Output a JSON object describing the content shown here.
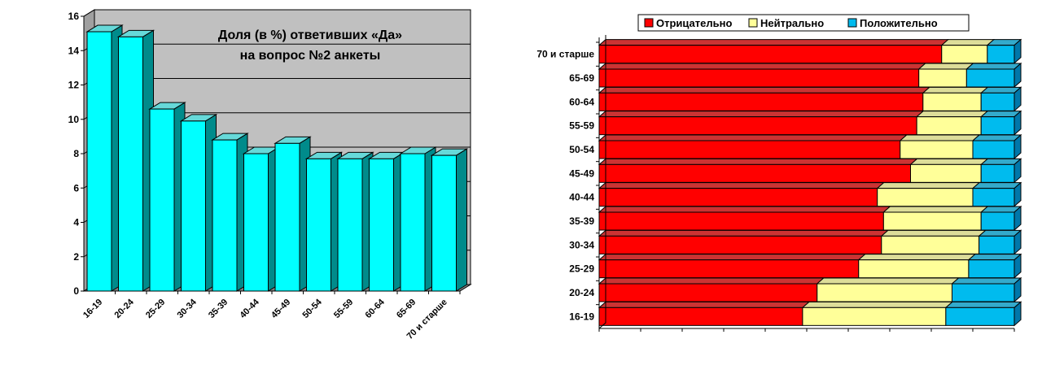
{
  "chart_data": [
    {
      "type": "bar",
      "title_lines": [
        "Доля (в %) ответивших «Да»",
        "на вопрос №2 анкеты"
      ],
      "categories": [
        "16-19",
        "20-24",
        "25-29",
        "30-34",
        "35-39",
        "40-44",
        "45-49",
        "50-54",
        "55-59",
        "60-64",
        "65-69",
        "70 и старше"
      ],
      "values": [
        15.1,
        14.8,
        10.6,
        9.9,
        8.8,
        8.0,
        8.6,
        7.7,
        7.7,
        7.7,
        8.0,
        7.9
      ],
      "ylim": [
        0,
        16
      ],
      "yticks": [
        "0",
        "2",
        "4",
        "6",
        "8",
        "10",
        "12",
        "14",
        "16"
      ],
      "grid": true,
      "bar_color": "#00FFFF",
      "bar_side_color": "#008B8B",
      "bar_top_color": "#66D9D9",
      "plot_background": "#C0C0C0"
    },
    {
      "type": "stacked-bar-100-horizontal",
      "categories": [
        "70 и старше",
        "65-69",
        "60-64",
        "55-59",
        "50-54",
        "45-49",
        "40-44",
        "35-39",
        "30-34",
        "25-29",
        "20-24",
        "16-19"
      ],
      "series": [
        {
          "name": "Отрицательно",
          "color": "#FF0000",
          "values": [
            82.5,
            77,
            78,
            76.5,
            72.5,
            75,
            67,
            68.5,
            68,
            62.5,
            52.5,
            49
          ]
        },
        {
          "name": "Нейтрально",
          "color": "#FFFF99",
          "values": [
            11,
            11.5,
            14,
            15.5,
            17.5,
            17,
            23,
            23.5,
            23.5,
            26.5,
            32.5,
            34.5
          ]
        },
        {
          "name": "Положительно",
          "color": "#00BBEE",
          "values": [
            6.5,
            11.5,
            8,
            8,
            10,
            8,
            10,
            8,
            8.5,
            11,
            15,
            16.5
          ]
        }
      ],
      "xlim": [
        0,
        100
      ],
      "legend_position": "top"
    }
  ]
}
